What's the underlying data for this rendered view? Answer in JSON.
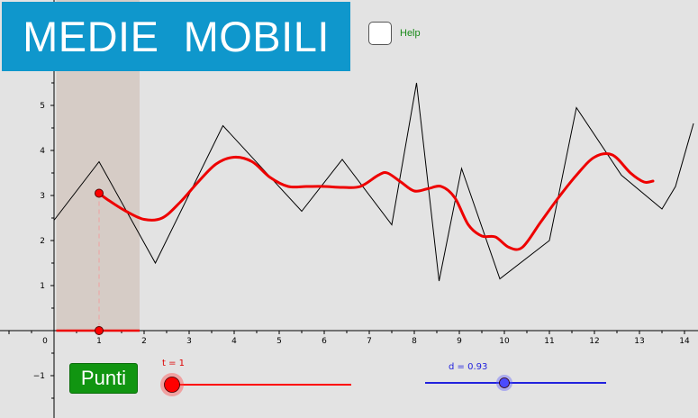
{
  "title": "MEDIE  MOBILI",
  "help": {
    "label": "Help",
    "checked": false
  },
  "punti_button": {
    "label": "Punti"
  },
  "slider_t": {
    "label": "t = 1",
    "value": 1,
    "min": 1,
    "max": 7,
    "color": "#ff0000"
  },
  "slider_d": {
    "label": "d = 0.93",
    "value": 0.93,
    "min": -0.9,
    "max": 3.28,
    "color": "#2222dd"
  },
  "colors": {
    "banner": "#0f97cc",
    "data_line": "#000000",
    "moving_average": "#ee0000",
    "window": "#d6ccc6",
    "point": "#ff0000"
  },
  "chart_data": {
    "type": "line",
    "x_ticks": [
      "0",
      "1",
      "2",
      "3",
      "4",
      "5",
      "6",
      "7",
      "8",
      "9",
      "10",
      "11",
      "12",
      "13",
      "14"
    ],
    "y_ticks": [
      "−1",
      "1",
      "2",
      "3",
      "4",
      "5"
    ],
    "xlim": [
      -1,
      14.2
    ],
    "ylim": [
      -1.9,
      6.5
    ],
    "window": [
      0.05,
      1.9
    ],
    "selected_point": {
      "x": 1,
      "y": 3.05
    },
    "series": [
      {
        "x": [
          0,
          1,
          2.25,
          3.75,
          5.5,
          6.4,
          7.5,
          8.05,
          8.55,
          9.05,
          9.9,
          11,
          11.6,
          12.6,
          13.5,
          13.8,
          14.2
        ],
        "y": [
          2.45,
          3.75,
          1.5,
          4.55,
          2.65,
          3.8,
          2.35,
          5.5,
          1.1,
          3.6,
          1.15,
          2.0,
          4.95,
          3.45,
          2.7,
          3.2,
          4.6
        ]
      },
      {
        "x": [
          1,
          1.2,
          1.6,
          2,
          2.4,
          2.8,
          3.2,
          3.6,
          4,
          4.4,
          4.8,
          5.2,
          5.6,
          6,
          6.4,
          6.8,
          7.2,
          7.4,
          7.7,
          8.0,
          8.3,
          8.6,
          8.9,
          9.2,
          9.5,
          9.8,
          10.1,
          10.4,
          10.8,
          11.2,
          11.6,
          12,
          12.4,
          12.8,
          13.1,
          13.3
        ],
        "y": [
          3.05,
          2.9,
          2.65,
          2.47,
          2.5,
          2.85,
          3.3,
          3.7,
          3.85,
          3.75,
          3.4,
          3.2,
          3.2,
          3.2,
          3.18,
          3.2,
          3.45,
          3.5,
          3.3,
          3.1,
          3.15,
          3.2,
          2.95,
          2.35,
          2.1,
          2.08,
          1.85,
          1.85,
          2.4,
          2.95,
          3.45,
          3.85,
          3.9,
          3.5,
          3.3,
          3.32
        ]
      }
    ]
  }
}
